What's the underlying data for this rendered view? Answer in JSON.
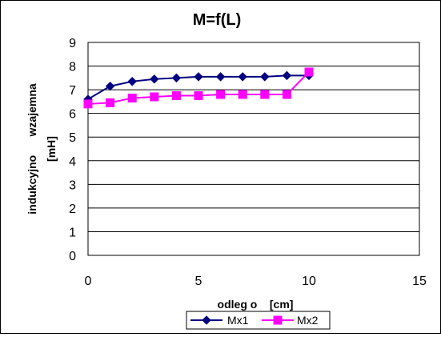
{
  "chart_data": {
    "type": "line",
    "title": "M=f(L)",
    "xlabel": "odleg o    [cm]",
    "ylabel_line1": "indukcyjno      wzajemna",
    "ylabel_line2": "[mH]",
    "xlim": [
      0,
      15
    ],
    "ylim": [
      0,
      9
    ],
    "x_ticks": [
      0,
      5,
      10,
      15
    ],
    "y_ticks": [
      0,
      1,
      2,
      3,
      4,
      5,
      6,
      7,
      8,
      9
    ],
    "grid": true,
    "legend_position": "bottom",
    "series": [
      {
        "name": "Mx1",
        "color": "#000080",
        "marker": "diamond",
        "x": [
          0,
          1,
          2,
          3,
          4,
          5,
          6,
          7,
          8,
          9,
          10
        ],
        "values": [
          6.6,
          7.15,
          7.35,
          7.45,
          7.5,
          7.55,
          7.55,
          7.55,
          7.55,
          7.6,
          7.6
        ]
      },
      {
        "name": "Mx2",
        "color": "#ff00ff",
        "marker": "square",
        "x": [
          0,
          1,
          2,
          3,
          4,
          5,
          6,
          7,
          8,
          9,
          10
        ],
        "values": [
          6.4,
          6.45,
          6.65,
          6.7,
          6.75,
          6.75,
          6.8,
          6.8,
          6.8,
          6.8,
          7.75
        ]
      }
    ]
  }
}
